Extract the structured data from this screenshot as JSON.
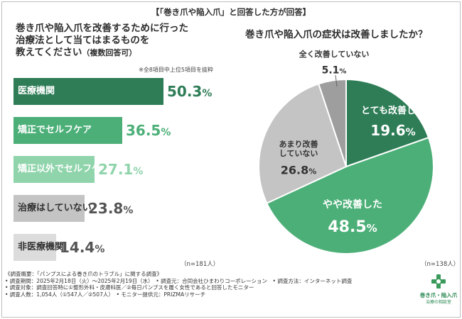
{
  "header": "【「巻き爪や陥入爪」と回答した方が回答】",
  "left": {
    "question_line1": "巻き爪や陥入爪を改善するために行った",
    "question_line2": "治療法として当てはまるものを",
    "question_line3": "教えてください",
    "question_sub": "（複数回答可）",
    "note": "※全8項目中上位5項目を抜粋",
    "n": "（n=181人）"
  },
  "right": {
    "question": "巻き爪や陥入爪の症状は改善しましたか？",
    "n": "（n=138人）"
  },
  "chart_data": [
    {
      "type": "bar",
      "orientation": "horizontal",
      "title": "巻き爪や陥入爪を改善するために行った治療法として当てはまるものを教えてください（複数回答可）",
      "categories": [
        "医療機関",
        "矯正でセルフケア",
        "矯正以外でセルフケア",
        "治療はしていない",
        "非医療機関"
      ],
      "values": [
        50.3,
        36.5,
        27.1,
        23.8,
        14.4
      ],
      "value_labels": [
        "50.3",
        "36.5",
        "27.1",
        "23.8",
        "14.4"
      ],
      "unit": "%",
      "colors": [
        "#2e7d57",
        "#4caf78",
        "#8fd4ab",
        "#c4c4c4",
        "#dcdcdc"
      ],
      "label_colors": [
        "#ffffff",
        "#ffffff",
        "#ffffff",
        "#333333",
        "#333333"
      ],
      "value_colors": [
        "#2e7d57",
        "#4caf78",
        "#8fd4ab",
        "#555555",
        "#555555"
      ]
    },
    {
      "type": "pie",
      "title": "巻き爪や陥入爪の症状は改善しましたか？",
      "categories": [
        "とても改善した",
        "やや改善した",
        "あまり改善していない",
        "全く改善していない"
      ],
      "label_lines": [
        [
          "とても改善した"
        ],
        [
          "やや改善した"
        ],
        [
          "あまり改善",
          "していない"
        ],
        [
          "全く改善していない"
        ]
      ],
      "values": [
        19.6,
        48.5,
        26.8,
        5.1
      ],
      "value_labels": [
        "19.6",
        "48.5",
        "26.8",
        "5.1"
      ],
      "unit": "%",
      "colors": [
        "#2e7d57",
        "#4caf78",
        "#c4c4c4",
        "#9e9e9e"
      ],
      "label_colors": [
        "#ffffff",
        "#ffffff",
        "#333333",
        "#333333"
      ]
    }
  ],
  "survey": {
    "title": "《調査概要：「パンプスによる巻き爪のトラブル」に関する調査》",
    "line1": "• 調査期間：2025年2月18日（火）〜2025年2月19日（水）　• 調査元：合同会社ひまわりコーポレーション　• 調査方法：インターネット調査",
    "line2": "• 調査対象：調査回答時に①整形外科・皮膚科医／②毎日パンプスを履く女性であると回答したモニター",
    "line3": "• 調査人数：1,054人（①547人／②507人）　• モニター提供元：PRIZMAリサーチ"
  },
  "logo": {
    "line1": "巻き爪・陥入爪",
    "line2": "治療の相談室"
  },
  "colors": {
    "dark_green": "#2e7d57",
    "mid_green": "#4caf78",
    "light_green": "#8fd4ab"
  }
}
